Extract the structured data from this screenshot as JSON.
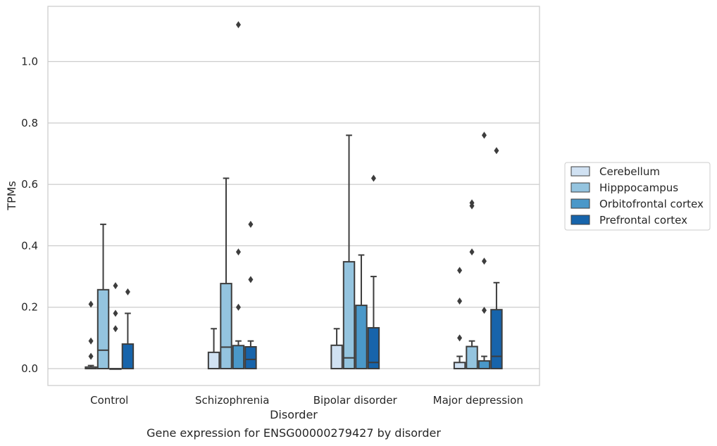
{
  "chart_data": {
    "type": "box",
    "title": "",
    "caption": "Gene expression for ENSG00000279427 by disorder",
    "xlabel": "Disorder",
    "ylabel": "TPMs",
    "ylim": [
      -0.055,
      1.18
    ],
    "yticks": [
      0.0,
      0.2,
      0.4,
      0.6,
      0.8,
      1.0
    ],
    "ytick_labels": [
      "0.0",
      "0.2",
      "0.4",
      "0.6",
      "0.8",
      "1.0"
    ],
    "grid": "horizontal",
    "legend_position": "right",
    "categories": [
      "Control",
      "Schizophrenia",
      "Bipolar disorder",
      "Major depression"
    ],
    "series": [
      {
        "name": "Cerebellum",
        "color": "#d0e1f2",
        "boxes": [
          {
            "whisker_low": 0.0,
            "q1": 0.0,
            "median": 0.0,
            "q3": 0.005,
            "whisker_high": 0.01,
            "outliers": [
              0.04,
              0.09,
              0.21
            ]
          },
          {
            "whisker_low": 0.0,
            "q1": 0.0,
            "median": 0.0,
            "q3": 0.053,
            "whisker_high": 0.13,
            "outliers": []
          },
          {
            "whisker_low": 0.0,
            "q1": 0.0,
            "median": 0.0,
            "q3": 0.076,
            "whisker_high": 0.13,
            "outliers": []
          },
          {
            "whisker_low": 0.0,
            "q1": 0.0,
            "median": 0.0,
            "q3": 0.02,
            "whisker_high": 0.04,
            "outliers": [
              0.1,
              0.22,
              0.32
            ]
          }
        ]
      },
      {
        "name": "Hipppocampus",
        "color": "#94c4df",
        "boxes": [
          {
            "whisker_low": 0.0,
            "q1": 0.0,
            "median": 0.06,
            "q3": 0.257,
            "whisker_high": 0.47,
            "outliers": []
          },
          {
            "whisker_low": 0.0,
            "q1": 0.0,
            "median": 0.07,
            "q3": 0.277,
            "whisker_high": 0.62,
            "outliers": []
          },
          {
            "whisker_low": 0.0,
            "q1": 0.0,
            "median": 0.035,
            "q3": 0.348,
            "whisker_high": 0.76,
            "outliers": []
          },
          {
            "whisker_low": 0.0,
            "q1": 0.0,
            "median": 0.0,
            "q3": 0.072,
            "whisker_high": 0.09,
            "outliers": [
              0.38,
              0.53,
              0.54
            ]
          }
        ]
      },
      {
        "name": "Orbitofrontal cortex",
        "color": "#4a98c9",
        "boxes": [
          {
            "whisker_low": 0.0,
            "q1": 0.0,
            "median": 0.0,
            "q3": 0.0,
            "whisker_high": 0.0,
            "outliers": [
              0.13,
              0.18,
              0.27
            ]
          },
          {
            "whisker_low": 0.0,
            "q1": 0.0,
            "median": 0.0,
            "q3": 0.075,
            "whisker_high": 0.09,
            "outliers": [
              0.2,
              0.38,
              1.12
            ]
          },
          {
            "whisker_low": 0.0,
            "q1": 0.0,
            "median": 0.0,
            "q3": 0.206,
            "whisker_high": 0.37,
            "outliers": []
          },
          {
            "whisker_low": 0.0,
            "q1": 0.0,
            "median": 0.0,
            "q3": 0.025,
            "whisker_high": 0.04,
            "outliers": [
              0.19,
              0.35,
              0.76
            ]
          }
        ]
      },
      {
        "name": "Prefrontal cortex",
        "color": "#1764ab",
        "boxes": [
          {
            "whisker_low": 0.0,
            "q1": 0.0,
            "median": 0.0,
            "q3": 0.08,
            "whisker_high": 0.18,
            "outliers": [
              0.25
            ]
          },
          {
            "whisker_low": 0.0,
            "q1": 0.0,
            "median": 0.03,
            "q3": 0.071,
            "whisker_high": 0.09,
            "outliers": [
              0.29,
              0.47
            ]
          },
          {
            "whisker_low": 0.0,
            "q1": 0.0,
            "median": 0.02,
            "q3": 0.133,
            "whisker_high": 0.3,
            "outliers": [
              0.62
            ]
          },
          {
            "whisker_low": 0.0,
            "q1": 0.0,
            "median": 0.04,
            "q3": 0.192,
            "whisker_high": 0.28,
            "outliers": [
              0.71
            ]
          }
        ]
      }
    ]
  }
}
